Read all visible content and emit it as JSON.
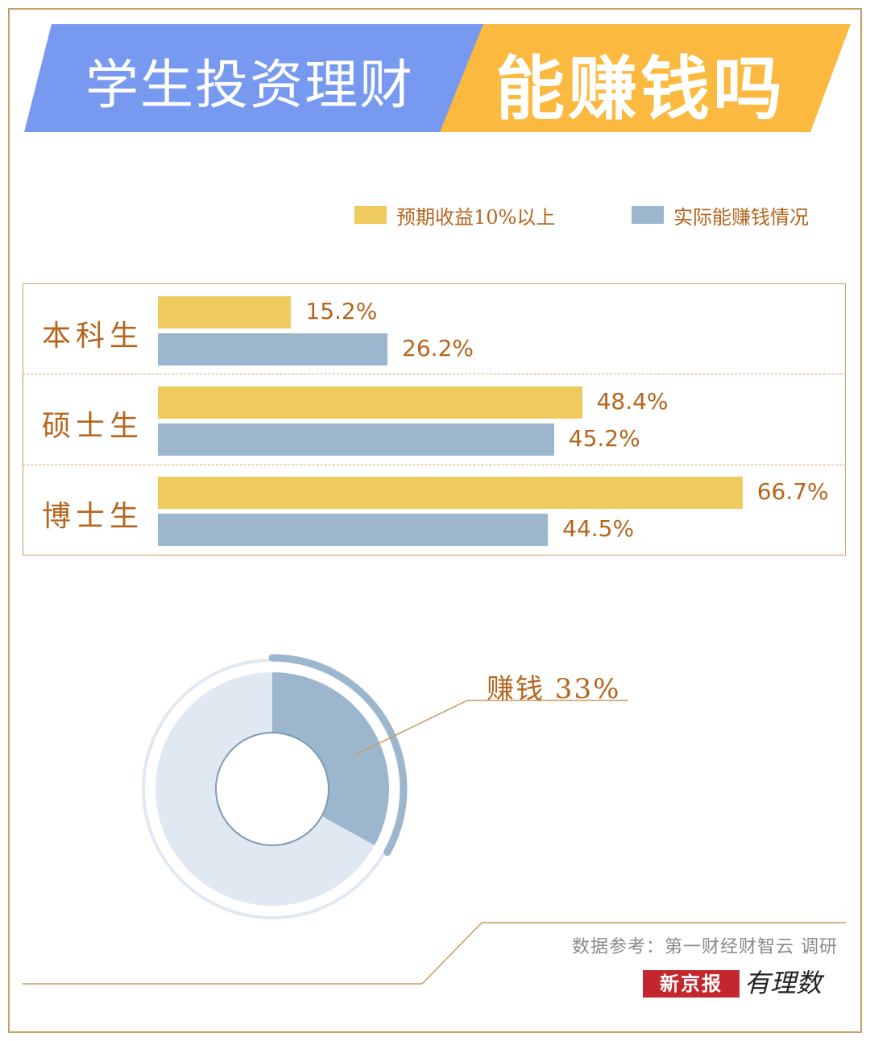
{
  "header": {
    "title_left": "学生投资理财",
    "title_right": "能赚钱吗",
    "colors": {
      "blue_banner": "#7799f0",
      "orange_banner": "#fbb93f"
    }
  },
  "legend": {
    "expected": {
      "label": "预期收益10%以上",
      "color": "#efcb5f"
    },
    "actual": {
      "label": "实际能赚钱情况",
      "color": "#9cb7cd"
    }
  },
  "chart_data": [
    {
      "type": "bar",
      "orientation": "horizontal",
      "categories": [
        "本科生",
        "硕士生",
        "博士生"
      ],
      "series": [
        {
          "name": "预期收益10%以上",
          "values": [
            15.2,
            48.4,
            66.7
          ],
          "labels": [
            "15.2%",
            "48.4%",
            "66.7%"
          ],
          "color": "#efcb5f"
        },
        {
          "name": "实际能赚钱情况",
          "values": [
            26.2,
            45.2,
            44.5
          ],
          "labels": [
            "26.2%",
            "45.2%",
            "44.5%"
          ],
          "color": "#9cb7cd"
        }
      ],
      "legend": "top-right",
      "grid": false
    },
    {
      "type": "pie",
      "style": "donut",
      "slices": [
        {
          "name": "赚钱",
          "value": 33,
          "label": "33%",
          "color": "#9cb7cd"
        },
        {
          "name": "",
          "value": 67,
          "color": "#e0e9f2"
        }
      ],
      "annotation": "赚钱 33%"
    }
  ],
  "footer": {
    "source": "数据参考：第一财经财智云 调研",
    "logo_box": "新京报",
    "logo_text": "有理数"
  }
}
